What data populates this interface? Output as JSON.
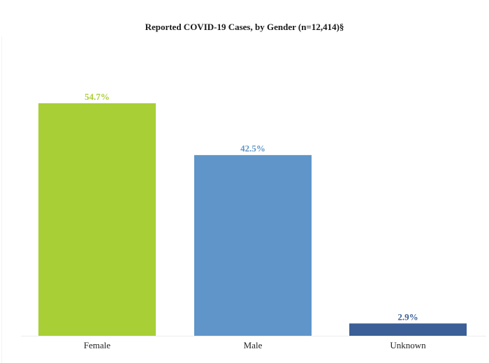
{
  "chart_data": {
    "type": "bar",
    "title": "Reported COVID-19 Cases, by Gender (n=12,414)§",
    "categories": [
      "Female",
      "Male",
      "Unknown"
    ],
    "values": [
      54.7,
      42.5,
      2.9
    ],
    "value_labels": [
      "54.7%",
      "42.5%",
      "2.9%"
    ],
    "colors": [
      "#a8cf35",
      "#5f95c8",
      "#3b5f96"
    ],
    "label_colors": [
      "#a8cf35",
      "#5f95c8",
      "#3b5f96"
    ],
    "xlabel": "",
    "ylabel": "",
    "ylim": [
      0,
      60
    ],
    "grid": false,
    "legend": "none"
  }
}
